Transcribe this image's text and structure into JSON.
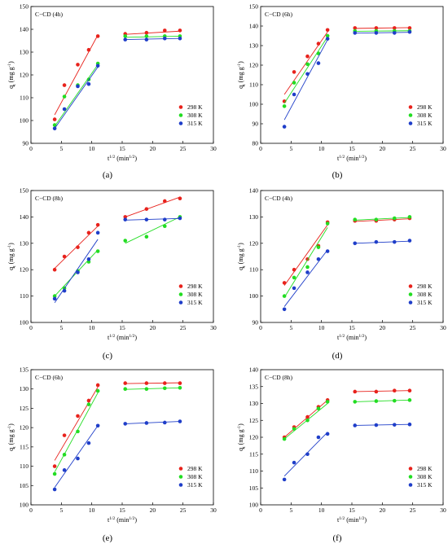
{
  "chart_data": [
    {
      "panel": "(a)",
      "title": "C−CD (4h)",
      "type": "scatter",
      "xlabel": "t^1/2 (min^1/2)",
      "ylabel": "q_t (mg g^-1)",
      "xlim": [
        0,
        30
      ],
      "ylim": [
        90,
        150
      ],
      "xticks": [
        0,
        5,
        10,
        15,
        20,
        25,
        30
      ],
      "yticks": [
        90,
        100,
        110,
        120,
        130,
        140,
        150
      ],
      "legend_position": "bottom-right",
      "series": [
        {
          "name": "298 K",
          "color": "#e8221c",
          "x": [
            3.9,
            5.5,
            7.7,
            9.5,
            11.0,
            15.5,
            19.0,
            22.0,
            24.5
          ],
          "y": [
            100.5,
            115.5,
            124.5,
            131.0,
            137.0,
            138.0,
            138.5,
            139.5,
            139.5
          ],
          "fits": [
            {
              "x": [
                3.9,
                11.0
              ],
              "y": [
                102.5,
                137.5
              ]
            },
            {
              "x": [
                15.5,
                24.5
              ],
              "y": [
                137.8,
                139.2
              ]
            }
          ]
        },
        {
          "name": "308 K",
          "color": "#22dd22",
          "x": [
            3.9,
            5.5,
            7.7,
            9.5,
            11.0,
            15.5,
            19.0,
            22.0,
            24.5
          ],
          "y": [
            98.0,
            110.5,
            115.5,
            118.0,
            125.0,
            137.0,
            137.0,
            137.0,
            137.0
          ],
          "fits": [
            {
              "x": [
                3.9,
                11.0
              ],
              "y": [
                97.5,
                124.5
              ]
            },
            {
              "x": [
                15.5,
                24.5
              ],
              "y": [
                136.5,
                137.0
              ]
            }
          ]
        },
        {
          "name": "315 K",
          "color": "#1f3ec9",
          "x": [
            3.9,
            5.5,
            7.7,
            9.5,
            11.0,
            15.5,
            19.0,
            22.0,
            24.5
          ],
          "y": [
            96.5,
            105.0,
            115.0,
            116.0,
            124.0,
            135.5,
            135.5,
            136.0,
            136.0
          ],
          "fits": [
            {
              "x": [
                3.9,
                11.0
              ],
              "y": [
                96.5,
                123.5
              ]
            },
            {
              "x": [
                15.5,
                24.5
              ],
              "y": [
                135.5,
                136.0
              ]
            }
          ]
        }
      ]
    },
    {
      "panel": "(b)",
      "title": "C−CD (6h)",
      "type": "scatter",
      "xlabel": "t^1/2 (min^1/2)",
      "ylabel": "q_t (mg g^-1)",
      "xlim": [
        0,
        30
      ],
      "ylim": [
        80,
        150
      ],
      "xticks": [
        0,
        5,
        10,
        15,
        20,
        25,
        30
      ],
      "yticks": [
        80,
        90,
        100,
        110,
        120,
        130,
        140,
        150
      ],
      "legend_position": "bottom-right",
      "series": [
        {
          "name": "298 K",
          "color": "#e8221c",
          "x": [
            3.9,
            5.5,
            7.7,
            9.5,
            11.0,
            15.5,
            19.0,
            22.0,
            24.5
          ],
          "y": [
            101.5,
            116.5,
            124.5,
            131.0,
            138.0,
            139.0,
            139.0,
            139.0,
            139.0
          ],
          "fits": [
            {
              "x": [
                3.9,
                11.0
              ],
              "y": [
                105.0,
                137.0
              ]
            },
            {
              "x": [
                15.5,
                24.5
              ],
              "y": [
                138.8,
                139.2
              ]
            }
          ]
        },
        {
          "name": "308 K",
          "color": "#22dd22",
          "x": [
            3.9,
            5.5,
            7.7,
            9.5,
            11.0,
            15.5,
            19.0,
            22.0,
            24.5
          ],
          "y": [
            99.0,
            111.0,
            120.5,
            126.0,
            135.0,
            137.5,
            137.5,
            137.5,
            137.5
          ],
          "fits": [
            {
              "x": [
                3.9,
                11.0
              ],
              "y": [
                100.5,
                134.5
              ]
            },
            {
              "x": [
                15.5,
                24.5
              ],
              "y": [
                137.3,
                137.6
              ]
            }
          ]
        },
        {
          "name": "315 K",
          "color": "#1f3ec9",
          "x": [
            3.9,
            5.5,
            7.7,
            9.5,
            11.0,
            15.5,
            19.0,
            22.0,
            24.5
          ],
          "y": [
            88.5,
            105.0,
            115.5,
            121.0,
            133.5,
            136.5,
            136.5,
            136.5,
            137.0
          ],
          "fits": [
            {
              "x": [
                3.9,
                11.0
              ],
              "y": [
                92.0,
                133.0
              ]
            },
            {
              "x": [
                15.5,
                24.5
              ],
              "y": [
                136.4,
                136.8
              ]
            }
          ]
        }
      ]
    },
    {
      "panel": "(c)",
      "title": "C−CD (8h)",
      "type": "scatter",
      "xlabel": "t^1/2 (min^1/2)",
      "ylabel": "q_t (mg g^-1)",
      "xlim": [
        0,
        30
      ],
      "ylim": [
        100,
        150
      ],
      "xticks": [
        0,
        5,
        10,
        15,
        20,
        25,
        30
      ],
      "yticks": [
        100,
        110,
        120,
        130,
        140,
        150
      ],
      "legend_position": "bottom-right",
      "series": [
        {
          "name": "298 K",
          "color": "#e8221c",
          "x": [
            3.9,
            5.5,
            7.7,
            9.5,
            11.0,
            15.5,
            19.0,
            22.0,
            24.5
          ],
          "y": [
            120.0,
            125.0,
            128.5,
            134.0,
            137.0,
            140.0,
            143.0,
            146.0,
            147.0
          ],
          "fits": [
            {
              "x": [
                3.9,
                11.0
              ],
              "y": [
                120.5,
                136.5
              ]
            },
            {
              "x": [
                15.5,
                24.5
              ],
              "y": [
                140.0,
                147.5
              ]
            }
          ]
        },
        {
          "name": "308 K",
          "color": "#22dd22",
          "x": [
            3.9,
            5.5,
            7.7,
            9.5,
            11.0,
            15.5,
            19.0,
            22.0,
            24.5
          ],
          "y": [
            110.0,
            113.0,
            119.5,
            123.0,
            127.0,
            131.0,
            132.5,
            136.5,
            140.0
          ],
          "fits": [
            {
              "x": [
                3.9,
                11.0
              ],
              "y": [
                110.0,
                127.5
              ]
            },
            {
              "x": [
                15.5,
                24.5
              ],
              "y": [
                130.0,
                140.0
              ]
            }
          ]
        },
        {
          "name": "315 K",
          "color": "#1f3ec9",
          "x": [
            3.9,
            5.5,
            7.7,
            9.5,
            11.0,
            15.5,
            19.0,
            22.0,
            24.5
          ],
          "y": [
            109.0,
            112.0,
            119.0,
            124.0,
            134.0,
            139.0,
            139.0,
            139.0,
            139.5
          ],
          "fits": [
            {
              "x": [
                3.9,
                11.0
              ],
              "y": [
                107.5,
                131.5
              ]
            },
            {
              "x": [
                15.5,
                24.5
              ],
              "y": [
                138.8,
                139.4
              ]
            }
          ]
        }
      ]
    },
    {
      "panel": "(d)",
      "title": "C−CD (4h)",
      "type": "scatter",
      "xlabel": "t^1/2 (min^1/2)",
      "ylabel": "q_t (mg g^-1)",
      "xlim": [
        0,
        30
      ],
      "ylim": [
        90,
        140
      ],
      "xticks": [
        0,
        5,
        10,
        15,
        20,
        25,
        30
      ],
      "yticks": [
        90,
        100,
        110,
        120,
        130,
        140
      ],
      "legend_position": "bottom-right",
      "series": [
        {
          "name": "298 K",
          "color": "#e8221c",
          "x": [
            3.9,
            5.5,
            7.7,
            9.5,
            11.0,
            15.5,
            19.0,
            22.0,
            24.5
          ],
          "y": [
            105.0,
            110.0,
            114.0,
            119.0,
            128.0,
            128.5,
            128.5,
            129.0,
            129.5
          ],
          "fits": [
            {
              "x": [
                3.9,
                11.0
              ],
              "y": [
                104.0,
                127.0
              ]
            },
            {
              "x": [
                15.5,
                24.5
              ],
              "y": [
                128.3,
                129.3
              ]
            }
          ]
        },
        {
          "name": "308 K",
          "color": "#22dd22",
          "x": [
            3.9,
            5.5,
            7.7,
            9.5,
            11.0,
            15.5,
            19.0,
            22.0,
            24.5
          ],
          "y": [
            100.0,
            107.0,
            111.0,
            118.5,
            127.5,
            129.0,
            129.0,
            129.5,
            130.0
          ],
          "fits": [
            {
              "x": [
                3.9,
                11.0
              ],
              "y": [
                99.5,
                126.0
              ]
            },
            {
              "x": [
                15.5,
                24.5
              ],
              "y": [
                128.8,
                129.8
              ]
            }
          ]
        },
        {
          "name": "315 K",
          "color": "#1f3ec9",
          "x": [
            3.9,
            5.5,
            7.7,
            9.5,
            11.0,
            15.5,
            19.0,
            22.0,
            24.5
          ],
          "y": [
            95.0,
            103.0,
            109.0,
            114.0,
            117.0,
            120.0,
            120.5,
            120.5,
            121.0
          ],
          "fits": [
            {
              "x": [
                3.9,
                11.0
              ],
              "y": [
                96.0,
                117.5
              ]
            },
            {
              "x": [
                15.5,
                24.5
              ],
              "y": [
                120.0,
                120.8
              ]
            }
          ]
        }
      ]
    },
    {
      "panel": "(e)",
      "title": "C−CD (6h)",
      "type": "scatter",
      "xlabel": "t^1/2 (min^1/2)",
      "ylabel": "q_t (mg g^-1)",
      "xlim": [
        0,
        30
      ],
      "ylim": [
        100,
        135
      ],
      "xticks": [
        0,
        5,
        10,
        15,
        20,
        25,
        30
      ],
      "yticks": [
        100,
        105,
        110,
        115,
        120,
        125,
        130,
        135
      ],
      "legend_position": "bottom-right",
      "series": [
        {
          "name": "298 K",
          "color": "#e8221c",
          "x": [
            3.9,
            5.5,
            7.7,
            9.5,
            11.0,
            15.5,
            19.0,
            22.0,
            24.5
          ],
          "y": [
            110.0,
            118.0,
            123.0,
            127.0,
            131.0,
            131.5,
            131.5,
            131.5,
            131.5
          ],
          "fits": [
            {
              "x": [
                3.9,
                11.0
              ],
              "y": [
                111.5,
                130.5
              ]
            },
            {
              "x": [
                15.5,
                24.5
              ],
              "y": [
                131.4,
                131.6
              ]
            }
          ]
        },
        {
          "name": "308 K",
          "color": "#22dd22",
          "x": [
            3.9,
            5.5,
            7.7,
            9.5,
            11.0,
            15.5,
            19.0,
            22.0,
            24.5
          ],
          "y": [
            108.0,
            113.0,
            119.0,
            126.0,
            129.5,
            130.0,
            130.0,
            130.2,
            130.3
          ],
          "fits": [
            {
              "x": [
                3.9,
                11.0
              ],
              "y": [
                108.5,
                129.0
              ]
            },
            {
              "x": [
                15.5,
                24.5
              ],
              "y": [
                129.9,
                130.3
              ]
            }
          ]
        },
        {
          "name": "315 K",
          "color": "#1f3ec9",
          "x": [
            3.9,
            5.5,
            7.7,
            9.5,
            11.0,
            15.5,
            19.0,
            22.0,
            24.5
          ],
          "y": [
            104.0,
            109.0,
            112.0,
            116.0,
            120.5,
            121.0,
            121.2,
            121.3,
            121.6
          ],
          "fits": [
            {
              "x": [
                3.9,
                11.0
              ],
              "y": [
                104.5,
                120.5
              ]
            },
            {
              "x": [
                15.5,
                24.5
              ],
              "y": [
                121.0,
                121.6
              ]
            }
          ]
        }
      ]
    },
    {
      "panel": "(f)",
      "title": "C−CD (8h)",
      "type": "scatter",
      "xlabel": "t^1/2 (min^1/2)",
      "ylabel": "q_t (mg g^-1)",
      "xlim": [
        0,
        30
      ],
      "ylim": [
        100,
        140
      ],
      "xticks": [
        0,
        5,
        10,
        15,
        20,
        25,
        30
      ],
      "yticks": [
        100,
        105,
        110,
        115,
        120,
        125,
        130,
        135,
        140
      ],
      "legend_position": "bottom-right",
      "series": [
        {
          "name": "298 K",
          "color": "#e8221c",
          "x": [
            3.9,
            5.5,
            7.7,
            9.5,
            11.0,
            15.5,
            19.0,
            22.0,
            24.5
          ],
          "y": [
            120.0,
            123.0,
            126.0,
            129.0,
            131.0,
            133.5,
            133.5,
            133.8,
            133.8
          ],
          "fits": [
            {
              "x": [
                3.9,
                11.0
              ],
              "y": [
                120.0,
                131.0
              ]
            },
            {
              "x": [
                15.5,
                24.5
              ],
              "y": [
                133.5,
                133.8
              ]
            }
          ]
        },
        {
          "name": "308 K",
          "color": "#22dd22",
          "x": [
            3.9,
            5.5,
            7.7,
            9.5,
            11.0,
            15.5,
            19.0,
            22.0,
            24.5
          ],
          "y": [
            119.5,
            122.5,
            125.0,
            128.5,
            130.5,
            130.5,
            130.7,
            130.8,
            131.0
          ],
          "fits": [
            {
              "x": [
                3.9,
                11.0
              ],
              "y": [
                119.5,
                130.0
              ]
            },
            {
              "x": [
                15.5,
                24.5
              ],
              "y": [
                130.5,
                131.0
              ]
            }
          ]
        },
        {
          "name": "315 K",
          "color": "#1f3ec9",
          "x": [
            3.9,
            5.5,
            7.7,
            9.5,
            11.0,
            15.5,
            19.0,
            22.0,
            24.5
          ],
          "y": [
            107.5,
            112.5,
            115.0,
            120.0,
            121.0,
            123.5,
            123.6,
            123.7,
            123.8
          ],
          "fits": [
            {
              "x": [
                3.9,
                11.0
              ],
              "y": [
                108.5,
                121.5
              ]
            },
            {
              "x": [
                15.5,
                24.5
              ],
              "y": [
                123.5,
                123.8
              ]
            }
          ]
        }
      ]
    }
  ]
}
